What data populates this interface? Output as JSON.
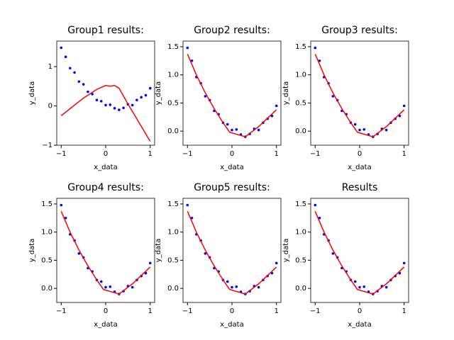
{
  "chart_data": [
    {
      "type": "scatter",
      "title": "Group1 results:",
      "xlabel": "x_data",
      "ylabel": "y_data",
      "xlim": [
        -1.1,
        1.1
      ],
      "xticks": [
        {
          "value": -1,
          "label": "−1"
        },
        0,
        1
      ],
      "ylim": [
        -1,
        1.65
      ],
      "yticks": [
        {
          "value": -1,
          "label": "−1"
        },
        0,
        1
      ],
      "series": [
        {
          "type": "scatter",
          "color": "#0000ff",
          "x": [
            -1,
            -0.9,
            -0.8,
            -0.7,
            -0.6,
            -0.5,
            -0.4,
            -0.3,
            -0.2,
            -0.1,
            0,
            0.1,
            0.2,
            0.3,
            0.4,
            0.5,
            0.6,
            0.7,
            0.8,
            0.9,
            1
          ],
          "values": [
            1.48,
            1.25,
            0.96,
            0.85,
            0.62,
            0.55,
            0.36,
            0.3,
            0.15,
            0.12,
            0.02,
            0.03,
            -0.06,
            -0.1,
            -0.05,
            0.04,
            0.02,
            0.15,
            0.22,
            0.27,
            0.45
          ]
        },
        {
          "type": "line",
          "color": "#ff0000",
          "x": [
            -1,
            -0.5,
            -0.2,
            0,
            0.1,
            0.2,
            0.3,
            0.5,
            1
          ],
          "values": [
            -0.25,
            0.2,
            0.42,
            0.52,
            0.5,
            0.52,
            0.45,
            0.05,
            -0.9
          ]
        }
      ]
    },
    {
      "type": "scatter",
      "title": "Group2 results:",
      "xlabel": "x_data",
      "ylabel": "y_data",
      "xlim": [
        -1.1,
        1.1
      ],
      "xticks": [
        {
          "value": -1,
          "label": "−1"
        },
        0,
        1
      ],
      "ylim": [
        -0.25,
        1.6
      ],
      "yticks": [
        {
          "value": 0,
          "label": "0.0"
        },
        0.5,
        {
          "value": 1,
          "label": "1.0"
        },
        1.5
      ],
      "series": [
        {
          "type": "scatter",
          "color": "#0000ff",
          "x": [
            -1,
            -0.9,
            -0.8,
            -0.7,
            -0.6,
            -0.5,
            -0.4,
            -0.3,
            -0.2,
            -0.1,
            0,
            0.1,
            0.2,
            0.3,
            0.4,
            0.5,
            0.6,
            0.7,
            0.8,
            0.9,
            1
          ],
          "values": [
            1.48,
            1.25,
            0.96,
            0.85,
            0.62,
            0.55,
            0.36,
            0.3,
            0.15,
            0.12,
            0.02,
            0.03,
            -0.06,
            -0.1,
            -0.05,
            0.04,
            0.02,
            0.15,
            0.22,
            0.27,
            0.45
          ]
        },
        {
          "type": "line",
          "color": "#ff0000",
          "x": [
            -1,
            -0.8,
            -0.6,
            -0.4,
            -0.2,
            -0.05,
            0.3,
            0.6,
            1
          ],
          "values": [
            1.37,
            1.0,
            0.68,
            0.4,
            0.15,
            -0.02,
            -0.1,
            0.08,
            0.38
          ]
        }
      ]
    },
    {
      "type": "scatter",
      "title": "Group3 results:",
      "xlabel": "x_data",
      "ylabel": "y_data",
      "xlim": [
        -1.1,
        1.1
      ],
      "xticks": [
        {
          "value": -1,
          "label": "−1"
        },
        0,
        1
      ],
      "ylim": [
        -0.25,
        1.6
      ],
      "yticks": [
        {
          "value": 0,
          "label": "0.0"
        },
        0.5,
        {
          "value": 1,
          "label": "1.0"
        },
        1.5
      ],
      "series": [
        {
          "type": "scatter",
          "color": "#0000ff",
          "x": [
            -1,
            -0.9,
            -0.8,
            -0.7,
            -0.6,
            -0.5,
            -0.4,
            -0.3,
            -0.2,
            -0.1,
            0,
            0.1,
            0.2,
            0.3,
            0.4,
            0.5,
            0.6,
            0.7,
            0.8,
            0.9,
            1
          ],
          "values": [
            1.48,
            1.25,
            0.96,
            0.85,
            0.62,
            0.55,
            0.36,
            0.3,
            0.15,
            0.12,
            0.02,
            0.03,
            -0.06,
            -0.1,
            -0.05,
            0.04,
            0.02,
            0.15,
            0.22,
            0.27,
            0.45
          ]
        },
        {
          "type": "line",
          "color": "#ff0000",
          "x": [
            -1,
            -0.8,
            -0.6,
            -0.4,
            -0.2,
            -0.05,
            0.3,
            0.6,
            1
          ],
          "values": [
            1.37,
            1.0,
            0.68,
            0.4,
            0.15,
            -0.02,
            -0.1,
            0.08,
            0.38
          ]
        }
      ]
    },
    {
      "type": "scatter",
      "title": "Group4 results:",
      "xlabel": "x_data",
      "ylabel": "y_data",
      "xlim": [
        -1.1,
        1.1
      ],
      "xticks": [
        {
          "value": -1,
          "label": "−1"
        },
        0,
        1
      ],
      "ylim": [
        -0.25,
        1.6
      ],
      "yticks": [
        {
          "value": 0,
          "label": "0.0"
        },
        0.5,
        {
          "value": 1,
          "label": "1.0"
        },
        1.5
      ],
      "series": [
        {
          "type": "scatter",
          "color": "#0000ff",
          "x": [
            -1,
            -0.9,
            -0.8,
            -0.7,
            -0.6,
            -0.5,
            -0.4,
            -0.3,
            -0.2,
            -0.1,
            0,
            0.1,
            0.2,
            0.3,
            0.4,
            0.5,
            0.6,
            0.7,
            0.8,
            0.9,
            1
          ],
          "values": [
            1.48,
            1.25,
            0.96,
            0.85,
            0.62,
            0.55,
            0.36,
            0.3,
            0.15,
            0.12,
            0.02,
            0.03,
            -0.06,
            -0.1,
            -0.05,
            0.04,
            0.02,
            0.15,
            0.22,
            0.27,
            0.45
          ]
        },
        {
          "type": "line",
          "color": "#ff0000",
          "x": [
            -1,
            -0.8,
            -0.6,
            -0.4,
            -0.2,
            -0.05,
            0.3,
            0.6,
            1
          ],
          "values": [
            1.37,
            1.0,
            0.68,
            0.4,
            0.15,
            -0.02,
            -0.1,
            0.08,
            0.38
          ]
        }
      ]
    },
    {
      "type": "scatter",
      "title": "Group5 results:",
      "xlabel": "x_data",
      "ylabel": "y_data",
      "xlim": [
        -1.1,
        1.1
      ],
      "xticks": [
        {
          "value": -1,
          "label": "−1"
        },
        0,
        1
      ],
      "ylim": [
        -0.25,
        1.6
      ],
      "yticks": [
        {
          "value": 0,
          "label": "0.0"
        },
        0.5,
        {
          "value": 1,
          "label": "1.0"
        },
        1.5
      ],
      "series": [
        {
          "type": "scatter",
          "color": "#0000ff",
          "x": [
            -1,
            -0.9,
            -0.8,
            -0.7,
            -0.6,
            -0.5,
            -0.4,
            -0.3,
            -0.2,
            -0.1,
            0,
            0.1,
            0.2,
            0.3,
            0.4,
            0.5,
            0.6,
            0.7,
            0.8,
            0.9,
            1
          ],
          "values": [
            1.48,
            1.25,
            0.96,
            0.85,
            0.62,
            0.55,
            0.36,
            0.3,
            0.15,
            0.12,
            0.02,
            0.03,
            -0.06,
            -0.1,
            -0.05,
            0.04,
            0.02,
            0.15,
            0.22,
            0.27,
            0.45
          ]
        },
        {
          "type": "line",
          "color": "#ff0000",
          "x": [
            -1,
            -0.8,
            -0.6,
            -0.4,
            -0.2,
            -0.05,
            0.3,
            0.6,
            1
          ],
          "values": [
            1.37,
            1.0,
            0.68,
            0.4,
            0.15,
            -0.02,
            -0.1,
            0.08,
            0.38
          ]
        }
      ]
    },
    {
      "type": "scatter",
      "title": "Results",
      "xlabel": "x_data",
      "ylabel": "y_data",
      "xlim": [
        -1.1,
        1.1
      ],
      "xticks": [
        {
          "value": -1,
          "label": "−1"
        },
        0,
        1
      ],
      "ylim": [
        -0.25,
        1.6
      ],
      "yticks": [
        {
          "value": 0,
          "label": "0.0"
        },
        0.5,
        {
          "value": 1,
          "label": "1.0"
        },
        1.5
      ],
      "series": [
        {
          "type": "scatter",
          "color": "#0000ff",
          "x": [
            -1,
            -0.9,
            -0.8,
            -0.7,
            -0.6,
            -0.5,
            -0.4,
            -0.3,
            -0.2,
            -0.1,
            0,
            0.1,
            0.2,
            0.3,
            0.4,
            0.5,
            0.6,
            0.7,
            0.8,
            0.9,
            1
          ],
          "values": [
            1.48,
            1.25,
            0.96,
            0.85,
            0.62,
            0.55,
            0.36,
            0.3,
            0.15,
            0.12,
            0.02,
            0.03,
            -0.06,
            -0.1,
            -0.05,
            0.04,
            0.02,
            0.15,
            0.22,
            0.27,
            0.45
          ]
        },
        {
          "type": "line",
          "color": "#ff0000",
          "x": [
            -1,
            -0.8,
            -0.6,
            -0.4,
            -0.2,
            -0.05,
            0.3,
            0.6,
            1
          ],
          "values": [
            1.37,
            1.0,
            0.68,
            0.4,
            0.15,
            -0.02,
            -0.1,
            0.08,
            0.38
          ]
        }
      ]
    }
  ]
}
